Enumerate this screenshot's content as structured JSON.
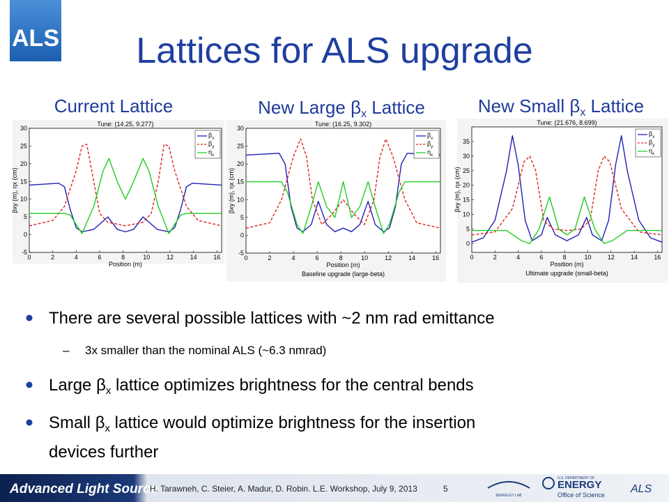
{
  "slide": {
    "logo": "ALS",
    "title": "Lattices for ALS upgrade",
    "labels": [
      [
        "Current Lattice"
      ],
      [
        "New Large ",
        "β",
        "x",
        " Lattice"
      ],
      [
        "New Small ",
        "β",
        "x",
        " Lattice"
      ]
    ],
    "bullets": [
      [
        "There are several possible lattices with ~2 nm rad emittance"
      ],
      [
        "Large ",
        "β",
        "x",
        " lattice optimizes brightness for the central bends"
      ],
      [
        "Small ",
        "β",
        "x",
        " lattice would optimize brightness for the insertion",
        "devices further"
      ]
    ],
    "sub_bullet": "3x smaller than the nominal ALS (~6.3 nmrad)",
    "footer": {
      "brand": "Advanced Light Source",
      "citation": "H. Tarawneh,  C. Steier, A. Madur, D. Robin. L.E. Workshop, July 9, 2013",
      "page": "5",
      "lab": "BERKELEY LAB",
      "doe_top": "U.S. DEPARTMENT OF",
      "doe": "ENERGY",
      "office": "Office of Science",
      "als": "ALS"
    }
  },
  "chart_data": [
    {
      "type": "line",
      "title": "Tune: (14.25, 9.277)",
      "x_label": "Position (m)",
      "y_label": "βxy (m), ηx (cm)",
      "xlim": [
        0,
        16.4
      ],
      "xticks": [
        0,
        2,
        4,
        6,
        8,
        10,
        12,
        14,
        16
      ],
      "ylim": [
        -5,
        30
      ],
      "yticks": [
        -5,
        0,
        5,
        10,
        15,
        20,
        25,
        30
      ],
      "legend": "upper right",
      "series": [
        {
          "name": "βx",
          "color": "#1f1fb4",
          "dash": false,
          "x": [
            0,
            2.5,
            3,
            3.5,
            4,
            4.5,
            5.5,
            6.7,
            7.5,
            8.2,
            8.9,
            9.7,
            10.9,
            11.9,
            12.4,
            12.9,
            13.4,
            13.9,
            16.4
          ],
          "values": [
            14,
            14.5,
            13.5,
            7,
            2,
            0.8,
            1.5,
            5,
            1.5,
            0.8,
            1.5,
            5,
            1.5,
            0.8,
            2,
            7,
            13.5,
            14.5,
            14
          ]
        },
        {
          "name": "βy",
          "color": "#e02020",
          "dash": true,
          "x": [
            0,
            2,
            3,
            4,
            4.5,
            4.9,
            5.5,
            6,
            6.7,
            8.2,
            9.7,
            10.4,
            11,
            11.5,
            11.9,
            12.4,
            13.4,
            14.4,
            16.4
          ],
          "values": [
            2.5,
            4,
            8,
            18,
            25,
            25.5,
            15,
            6,
            3.5,
            2.5,
            3.5,
            6,
            15,
            25.5,
            25,
            18,
            8,
            4,
            2.5
          ]
        },
        {
          "name": "ηx",
          "color": "#22cc22",
          "dash": false,
          "x": [
            0,
            3,
            3.5,
            4.5,
            5.5,
            6.3,
            6.8,
            7.5,
            8.2,
            8.9,
            9.7,
            10.2,
            11,
            11.9,
            12.9,
            13.4,
            16.4
          ],
          "values": [
            6,
            6,
            5.5,
            0.3,
            8,
            18,
            21.5,
            15,
            10,
            15,
            21.5,
            18,
            8,
            0.3,
            5.5,
            6,
            6
          ]
        }
      ]
    },
    {
      "type": "line",
      "title": "Tune: (16.25, 9.302)",
      "x_label": "Position (m)",
      "caption": "Baseline upgrade (large-beta)",
      "y_label": "βxy (m), ηx (cm)",
      "xlim": [
        0,
        16.4
      ],
      "xticks": [
        0,
        2,
        4,
        6,
        8,
        10,
        12,
        14,
        16
      ],
      "ylim": [
        -5,
        30
      ],
      "yticks": [
        -5,
        0,
        5,
        10,
        15,
        20,
        25,
        30
      ],
      "legend": "upper right",
      "series": [
        {
          "name": "βx",
          "color": "#1f1fb4",
          "dash": false,
          "x": [
            0,
            2.8,
            3.3,
            3.8,
            4.3,
            4.8,
            5.5,
            6.1,
            6.8,
            7.5,
            8.2,
            8.9,
            9.6,
            10.3,
            10.9,
            11.6,
            12.1,
            12.6,
            13.1,
            13.6,
            16.4
          ],
          "values": [
            22.5,
            23,
            20,
            8,
            2,
            1,
            3,
            9.5,
            3,
            1,
            2,
            1,
            3,
            9.5,
            3,
            1,
            2,
            8,
            20,
            23,
            22.5
          ]
        },
        {
          "name": "βy",
          "color": "#e02020",
          "dash": true,
          "x": [
            0,
            2,
            3,
            4,
            4.6,
            5.1,
            5.6,
            6.4,
            7.3,
            8.2,
            9.1,
            10,
            10.8,
            11.3,
            11.8,
            12.4,
            13.4,
            14.4,
            16.4
          ],
          "values": [
            2,
            3.5,
            10,
            22,
            27,
            22,
            10,
            3,
            6,
            10,
            6,
            3,
            10,
            22,
            27,
            22,
            10,
            3.5,
            2
          ]
        },
        {
          "name": "ηx",
          "color": "#22cc22",
          "dash": false,
          "x": [
            0,
            3,
            3.5,
            4.3,
            4.8,
            5.5,
            6.1,
            6.8,
            7.5,
            8.2,
            8.9,
            9.6,
            10.3,
            10.9,
            11.6,
            12.1,
            12.9,
            13.4,
            16.4
          ],
          "values": [
            15,
            15,
            12,
            3,
            0.5,
            8,
            15,
            8,
            5,
            15,
            5,
            8,
            15,
            8,
            0.5,
            3,
            12,
            15,
            15
          ]
        }
      ]
    },
    {
      "type": "line",
      "title": "Tune: (21.676, 8.699)",
      "x_label": "Position (m)",
      "caption": "Ultimate upgrade (small-beta)",
      "y_label": "βxy (m), ηx (cm)",
      "xlim": [
        0,
        16.4
      ],
      "xticks": [
        0,
        2,
        4,
        6,
        8,
        10,
        12,
        14,
        16
      ],
      "ylim": [
        -3,
        40
      ],
      "yticks": [
        0,
        5,
        10,
        15,
        20,
        25,
        30,
        35
      ],
      "legend": "upper right",
      "series": [
        {
          "name": "βx",
          "color": "#1f1fb4",
          "dash": false,
          "x": [
            0,
            1,
            2,
            3,
            3.5,
            4,
            4.6,
            5.2,
            6,
            6.5,
            7.2,
            8.2,
            9.2,
            9.9,
            10.4,
            11.2,
            11.8,
            12.4,
            12.9,
            13.4,
            14.4,
            15.4,
            16.4
          ],
          "values": [
            0.5,
            2,
            8,
            25,
            37,
            27,
            8,
            1,
            3,
            9,
            3,
            1,
            3,
            9,
            3,
            1,
            8,
            27,
            37,
            25,
            8,
            2,
            0.5
          ]
        },
        {
          "name": "βy",
          "color": "#e02020",
          "dash": true,
          "x": [
            0,
            2,
            3.5,
            4.5,
            5,
            5.5,
            6.2,
            7,
            8.2,
            9.4,
            10.2,
            10.9,
            11.4,
            11.9,
            12.9,
            14.4,
            16.4
          ],
          "values": [
            3,
            4,
            12,
            28,
            30,
            25,
            8,
            5,
            4.5,
            5,
            8,
            25,
            30,
            28,
            12,
            4,
            3
          ]
        },
        {
          "name": "ηx",
          "color": "#22cc22",
          "dash": false,
          "x": [
            0,
            3,
            4.3,
            5,
            5.8,
            6.7,
            7.5,
            8.2,
            8.9,
            9.7,
            10.6,
            11.4,
            12.1,
            13.4,
            16.4
          ],
          "values": [
            4.5,
            4.5,
            1,
            0,
            5,
            16,
            5,
            3,
            5,
            16,
            5,
            0,
            1,
            4.5,
            4.5
          ]
        }
      ]
    }
  ]
}
